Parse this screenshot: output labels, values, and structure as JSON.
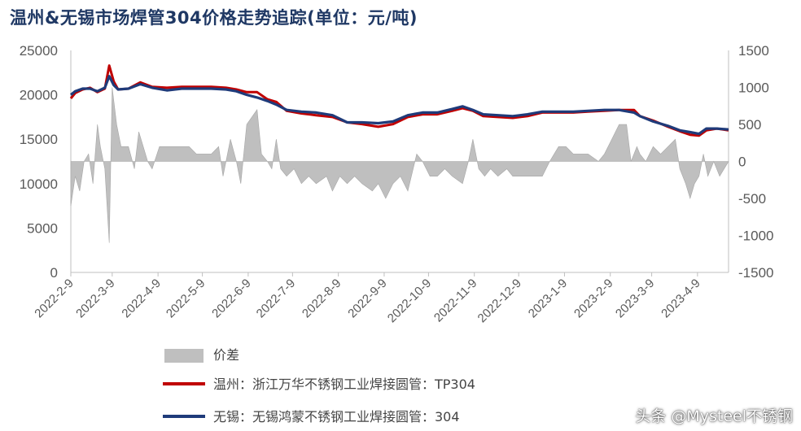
{
  "chart_data": {
    "type": "line",
    "title": "温州&无锡市场焊管304价格走势追踪(单位：元/吨)",
    "y_left": {
      "ylim": [
        0,
        25000
      ],
      "ticks": [
        "25000",
        "20000",
        "15000",
        "10000",
        "5000",
        "0"
      ]
    },
    "y_right": {
      "ylim": [
        -1500,
        1500
      ],
      "ticks": [
        "1500",
        "1000",
        "500",
        "0",
        "-500",
        "-1000",
        "-1500"
      ]
    },
    "x_range": [
      "2022-02-09",
      "2023-04-30"
    ],
    "x_ticks": [
      {
        "date": "2022-02-09",
        "label": "2022-2-9"
      },
      {
        "date": "2022-03-09",
        "label": "2022-3-9"
      },
      {
        "date": "2022-04-09",
        "label": "2022-4-9"
      },
      {
        "date": "2022-05-09",
        "label": "2022-5-9"
      },
      {
        "date": "2022-06-09",
        "label": "2022-6-9"
      },
      {
        "date": "2022-07-09",
        "label": "2022-7-9"
      },
      {
        "date": "2022-08-09",
        "label": "2022-8-9"
      },
      {
        "date": "2022-09-09",
        "label": "2022-9-9"
      },
      {
        "date": "2022-10-09",
        "label": "2022-10-9"
      },
      {
        "date": "2022-11-09",
        "label": "2022-11-9"
      },
      {
        "date": "2022-12-09",
        "label": "2022-12-9"
      },
      {
        "date": "2023-01-09",
        "label": "2023-1-9"
      },
      {
        "date": "2023-02-09",
        "label": "2023-2-9"
      },
      {
        "date": "2023-03-09",
        "label": "2023-3-9"
      },
      {
        "date": "2023-04-09",
        "label": "2023-4-9"
      }
    ],
    "grid": false,
    "legend_position": "bottom",
    "series": [
      {
        "name": "温州：浙江万华不锈钢工业焊接圆管：TP304",
        "axis": "left",
        "kind": "line",
        "color": "#c00000",
        "points": [
          [
            "2022-02-09",
            19600
          ],
          [
            "2022-02-12",
            20200
          ],
          [
            "2022-02-17",
            20600
          ],
          [
            "2022-02-22",
            20800
          ],
          [
            "2022-02-27",
            20300
          ],
          [
            "2022-03-04",
            20700
          ],
          [
            "2022-03-07",
            23300
          ],
          [
            "2022-03-10",
            21500
          ],
          [
            "2022-03-13",
            20600
          ],
          [
            "2022-03-20",
            20700
          ],
          [
            "2022-03-28",
            21400
          ],
          [
            "2022-04-05",
            20900
          ],
          [
            "2022-04-15",
            20800
          ],
          [
            "2022-04-25",
            20900
          ],
          [
            "2022-05-05",
            20900
          ],
          [
            "2022-05-15",
            20900
          ],
          [
            "2022-05-25",
            20800
          ],
          [
            "2022-06-01",
            20600
          ],
          [
            "2022-06-08",
            20300
          ],
          [
            "2022-06-15",
            20300
          ],
          [
            "2022-06-22",
            19500
          ],
          [
            "2022-06-28",
            19200
          ],
          [
            "2022-07-05",
            18200
          ],
          [
            "2022-07-15",
            17900
          ],
          [
            "2022-07-25",
            17700
          ],
          [
            "2022-08-05",
            17500
          ],
          [
            "2022-08-15",
            16900
          ],
          [
            "2022-08-25",
            16700
          ],
          [
            "2022-09-05",
            16400
          ],
          [
            "2022-09-15",
            16700
          ],
          [
            "2022-09-25",
            17500
          ],
          [
            "2022-10-05",
            17800
          ],
          [
            "2022-10-15",
            17800
          ],
          [
            "2022-10-25",
            18200
          ],
          [
            "2022-11-01",
            18500
          ],
          [
            "2022-11-08",
            18200
          ],
          [
            "2022-11-15",
            17600
          ],
          [
            "2022-11-25",
            17500
          ],
          [
            "2022-12-05",
            17400
          ],
          [
            "2022-12-15",
            17600
          ],
          [
            "2022-12-25",
            18000
          ],
          [
            "2023-01-05",
            18000
          ],
          [
            "2023-01-15",
            18000
          ],
          [
            "2023-01-25",
            18100
          ],
          [
            "2023-02-05",
            18200
          ],
          [
            "2023-02-15",
            18300
          ],
          [
            "2023-02-25",
            18300
          ],
          [
            "2023-03-01",
            17600
          ],
          [
            "2023-03-10",
            17100
          ],
          [
            "2023-03-20",
            16400
          ],
          [
            "2023-03-28",
            15900
          ],
          [
            "2023-04-04",
            15500
          ],
          [
            "2023-04-10",
            15400
          ],
          [
            "2023-04-15",
            16000
          ],
          [
            "2023-04-22",
            16200
          ],
          [
            "2023-04-30",
            16000
          ]
        ]
      },
      {
        "name": "无锡：无锡鸿蒙不锈钢工业焊接圆管：304",
        "axis": "left",
        "kind": "line",
        "color": "#1f3b7a",
        "points": [
          [
            "2022-02-09",
            20000
          ],
          [
            "2022-02-12",
            20400
          ],
          [
            "2022-02-17",
            20700
          ],
          [
            "2022-02-22",
            20700
          ],
          [
            "2022-02-27",
            20400
          ],
          [
            "2022-03-04",
            20800
          ],
          [
            "2022-03-07",
            22100
          ],
          [
            "2022-03-10",
            21100
          ],
          [
            "2022-03-13",
            20600
          ],
          [
            "2022-03-20",
            20700
          ],
          [
            "2022-03-28",
            21200
          ],
          [
            "2022-04-05",
            20800
          ],
          [
            "2022-04-15",
            20500
          ],
          [
            "2022-04-25",
            20700
          ],
          [
            "2022-05-05",
            20700
          ],
          [
            "2022-05-15",
            20700
          ],
          [
            "2022-05-25",
            20600
          ],
          [
            "2022-06-01",
            20400
          ],
          [
            "2022-06-08",
            20000
          ],
          [
            "2022-06-15",
            19700
          ],
          [
            "2022-06-22",
            19300
          ],
          [
            "2022-06-28",
            18900
          ],
          [
            "2022-07-05",
            18300
          ],
          [
            "2022-07-15",
            18100
          ],
          [
            "2022-07-25",
            18000
          ],
          [
            "2022-08-05",
            17700
          ],
          [
            "2022-08-15",
            16900
          ],
          [
            "2022-08-25",
            16900
          ],
          [
            "2022-09-05",
            16800
          ],
          [
            "2022-09-15",
            17000
          ],
          [
            "2022-09-25",
            17700
          ],
          [
            "2022-10-05",
            18000
          ],
          [
            "2022-10-15",
            18000
          ],
          [
            "2022-10-25",
            18400
          ],
          [
            "2022-11-01",
            18700
          ],
          [
            "2022-11-08",
            18300
          ],
          [
            "2022-11-15",
            17800
          ],
          [
            "2022-11-25",
            17700
          ],
          [
            "2022-12-05",
            17600
          ],
          [
            "2022-12-15",
            17800
          ],
          [
            "2022-12-25",
            18100
          ],
          [
            "2023-01-05",
            18100
          ],
          [
            "2023-01-15",
            18100
          ],
          [
            "2023-01-25",
            18200
          ],
          [
            "2023-02-05",
            18300
          ],
          [
            "2023-02-15",
            18300
          ],
          [
            "2023-02-25",
            18000
          ],
          [
            "2023-03-01",
            17600
          ],
          [
            "2023-03-10",
            17000
          ],
          [
            "2023-03-20",
            16500
          ],
          [
            "2023-03-28",
            16000
          ],
          [
            "2023-04-04",
            15800
          ],
          [
            "2023-04-10",
            15600
          ],
          [
            "2023-04-15",
            16200
          ],
          [
            "2023-04-22",
            16200
          ],
          [
            "2023-04-30",
            16100
          ]
        ]
      },
      {
        "name": "价差",
        "axis": "right",
        "kind": "area",
        "color": "#bfbfbf",
        "points": [
          [
            "2022-02-09",
            -600
          ],
          [
            "2022-02-12",
            -200
          ],
          [
            "2022-02-15",
            -400
          ],
          [
            "2022-02-18",
            0
          ],
          [
            "2022-02-21",
            100
          ],
          [
            "2022-02-24",
            -300
          ],
          [
            "2022-02-27",
            500
          ],
          [
            "2022-03-01",
            200
          ],
          [
            "2022-03-04",
            -100
          ],
          [
            "2022-03-07",
            -1100
          ],
          [
            "2022-03-09",
            1000
          ],
          [
            "2022-03-12",
            500
          ],
          [
            "2022-03-15",
            200
          ],
          [
            "2022-03-20",
            200
          ],
          [
            "2022-03-24",
            -100
          ],
          [
            "2022-03-27",
            400
          ],
          [
            "2022-03-30",
            200
          ],
          [
            "2022-04-02",
            0
          ],
          [
            "2022-04-05",
            -100
          ],
          [
            "2022-04-10",
            200
          ],
          [
            "2022-04-20",
            200
          ],
          [
            "2022-04-30",
            200
          ],
          [
            "2022-05-05",
            100
          ],
          [
            "2022-05-15",
            100
          ],
          [
            "2022-05-20",
            200
          ],
          [
            "2022-05-23",
            -200
          ],
          [
            "2022-05-28",
            300
          ],
          [
            "2022-06-01",
            0
          ],
          [
            "2022-06-04",
            -300
          ],
          [
            "2022-06-08",
            500
          ],
          [
            "2022-06-15",
            700
          ],
          [
            "2022-06-18",
            100
          ],
          [
            "2022-06-22",
            0
          ],
          [
            "2022-06-25",
            -100
          ],
          [
            "2022-06-28",
            300
          ],
          [
            "2022-07-01",
            -100
          ],
          [
            "2022-07-05",
            -200
          ],
          [
            "2022-07-10",
            -100
          ],
          [
            "2022-07-15",
            -300
          ],
          [
            "2022-07-20",
            -200
          ],
          [
            "2022-07-25",
            -300
          ],
          [
            "2022-08-01",
            -200
          ],
          [
            "2022-08-05",
            -400
          ],
          [
            "2022-08-10",
            -200
          ],
          [
            "2022-08-15",
            -300
          ],
          [
            "2022-08-20",
            -200
          ],
          [
            "2022-08-25",
            -300
          ],
          [
            "2022-09-01",
            -400
          ],
          [
            "2022-09-05",
            -300
          ],
          [
            "2022-09-10",
            -500
          ],
          [
            "2022-09-15",
            -300
          ],
          [
            "2022-09-20",
            -200
          ],
          [
            "2022-09-25",
            -400
          ],
          [
            "2022-10-01",
            100
          ],
          [
            "2022-10-05",
            0
          ],
          [
            "2022-10-10",
            -200
          ],
          [
            "2022-10-15",
            -200
          ],
          [
            "2022-10-20",
            -100
          ],
          [
            "2022-10-25",
            -200
          ],
          [
            "2022-11-01",
            -300
          ],
          [
            "2022-11-05",
            0
          ],
          [
            "2022-11-08",
            300
          ],
          [
            "2022-11-12",
            -100
          ],
          [
            "2022-11-16",
            -200
          ],
          [
            "2022-11-20",
            -100
          ],
          [
            "2022-11-25",
            -200
          ],
          [
            "2022-12-01",
            -100
          ],
          [
            "2022-12-05",
            -200
          ],
          [
            "2022-12-15",
            -200
          ],
          [
            "2022-12-25",
            -200
          ],
          [
            "2022-12-30",
            0
          ],
          [
            "2023-01-05",
            200
          ],
          [
            "2023-01-10",
            200
          ],
          [
            "2023-01-15",
            100
          ],
          [
            "2023-01-25",
            100
          ],
          [
            "2023-02-01",
            0
          ],
          [
            "2023-02-05",
            100
          ],
          [
            "2023-02-10",
            300
          ],
          [
            "2023-02-15",
            500
          ],
          [
            "2023-02-20",
            500
          ],
          [
            "2023-02-23",
            0
          ],
          [
            "2023-02-27",
            200
          ],
          [
            "2023-03-01",
            100
          ],
          [
            "2023-03-05",
            0
          ],
          [
            "2023-03-10",
            200
          ],
          [
            "2023-03-15",
            100
          ],
          [
            "2023-03-20",
            200
          ],
          [
            "2023-03-25",
            300
          ],
          [
            "2023-03-28",
            -100
          ],
          [
            "2023-04-01",
            -300
          ],
          [
            "2023-04-04",
            -500
          ],
          [
            "2023-04-07",
            -300
          ],
          [
            "2023-04-10",
            -200
          ],
          [
            "2023-04-13",
            100
          ],
          [
            "2023-04-16",
            -200
          ],
          [
            "2023-04-20",
            0
          ],
          [
            "2023-04-24",
            -200
          ],
          [
            "2023-04-30",
            0
          ]
        ]
      }
    ],
    "legend": [
      {
        "label": "价差",
        "series": 2
      },
      {
        "label": "温州：浙江万华不锈钢工业焊接圆管：TP304",
        "series": 0
      },
      {
        "label": "无锡：无锡鸿蒙不锈钢工业焊接圆管：304",
        "series": 1
      }
    ]
  },
  "watermark": "头条 @Mysteel不锈钢"
}
